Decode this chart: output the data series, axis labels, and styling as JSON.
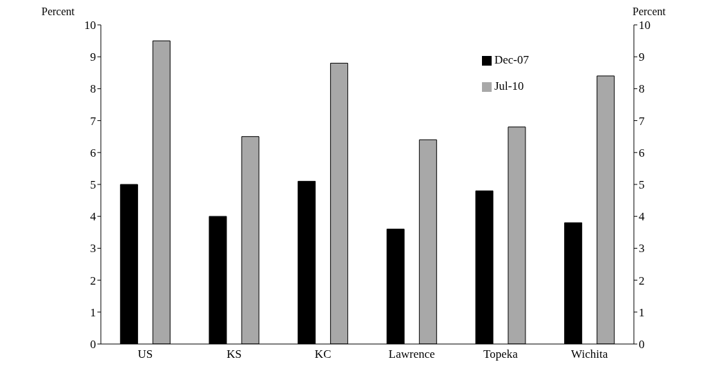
{
  "chart_data": {
    "type": "bar",
    "ylabel": "Percent",
    "y2label": "Percent",
    "categories": [
      "US",
      "KS",
      "KC",
      "Lawrence",
      "Topeka",
      "Wichita"
    ],
    "series": [
      {
        "name": "Dec-07",
        "color": "#000000",
        "values": [
          5.0,
          4.0,
          5.1,
          3.6,
          4.8,
          3.8
        ]
      },
      {
        "name": "Jul-10",
        "color": "#a8a8a8",
        "values": [
          9.5,
          6.5,
          8.8,
          6.4,
          6.8,
          8.4
        ]
      }
    ],
    "ylim": [
      0,
      10
    ],
    "yticks": [
      0,
      1,
      2,
      3,
      4,
      5,
      6,
      7,
      8,
      9,
      10
    ],
    "y2lim": [
      0,
      10
    ],
    "y2ticks": [
      0,
      1,
      2,
      3,
      4,
      5,
      6,
      7,
      8,
      9,
      10
    ],
    "legend": "top right"
  }
}
